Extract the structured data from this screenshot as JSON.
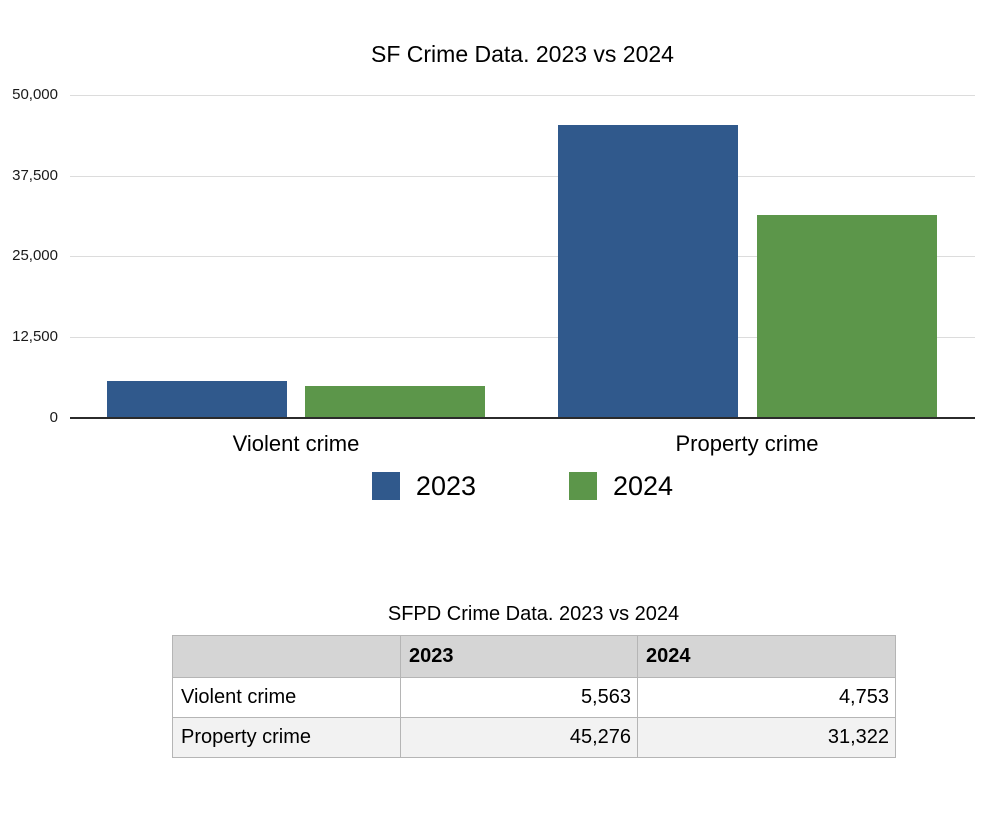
{
  "chart": {
    "title": "SF Crime Data. 2023 vs 2024",
    "y_ticks": [
      "50,000",
      "37,500",
      "25,000",
      "12,500",
      "0"
    ],
    "colors": {
      "gridline": "#dcdcdc",
      "axis_line": "#2b2b2b"
    }
  },
  "chart_data": {
    "type": "bar",
    "title": "SF Crime Data. 2023 vs 2024",
    "categories": [
      "Violent crime",
      "Property crime"
    ],
    "series": [
      {
        "name": "2023",
        "color": "#30598c",
        "values": [
          5563,
          45276
        ]
      },
      {
        "name": "2024",
        "color": "#5c964a",
        "values": [
          4753,
          31322
        ]
      }
    ],
    "xlabel": "",
    "ylabel": "",
    "ylim": [
      0,
      50000
    ],
    "y_tick_step": 12500,
    "grid": true,
    "legend_position": "bottom"
  },
  "table": {
    "title": "SFPD Crime Data. 2023 vs 2024",
    "columns": [
      "",
      "2023",
      "2024"
    ],
    "rows": [
      {
        "label": "Violent crime",
        "values": [
          "5,563",
          "4,753"
        ]
      },
      {
        "label": "Property crime",
        "values": [
          "45,276",
          "31,322"
        ]
      }
    ],
    "colors": {
      "header_bg": "#d5d5d5",
      "alt_row_bg": "#f2f2f2",
      "border": "#b5b5b5"
    }
  }
}
